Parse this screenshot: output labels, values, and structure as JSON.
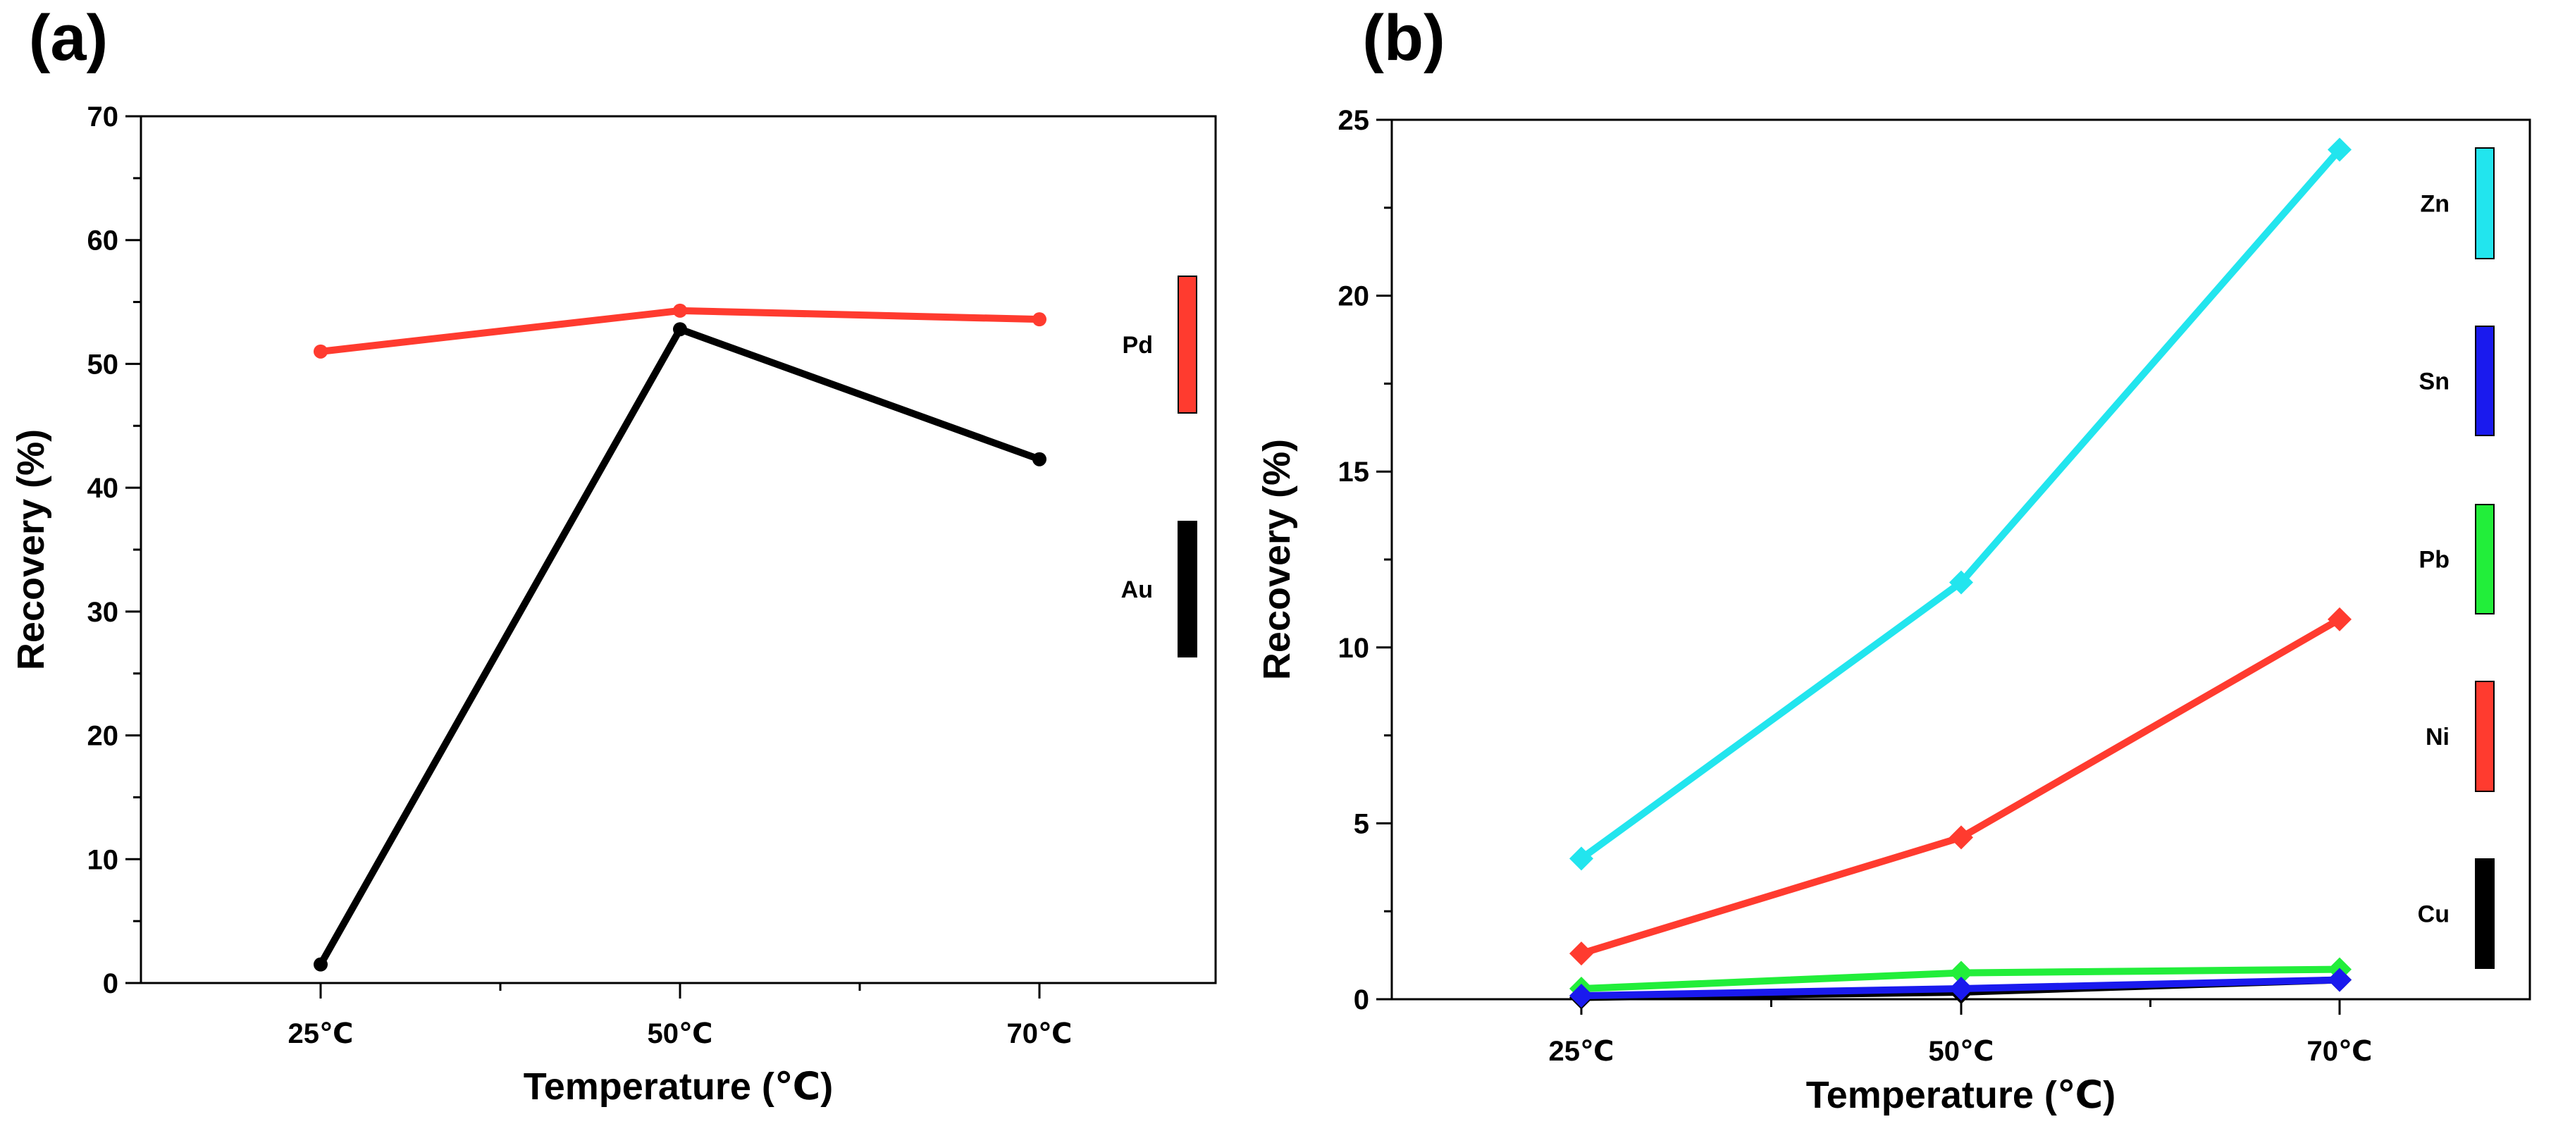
{
  "chart_data": [
    {
      "panel_label": "(a)",
      "type": "line",
      "categories": [
        "25℃",
        "50℃",
        "70℃"
      ],
      "xlabel": "Temperature (℃)",
      "ylabel": "Recovery (%)",
      "ylim": [
        0,
        70
      ],
      "yticks": [
        0,
        10,
        20,
        30,
        40,
        50,
        60,
        70
      ],
      "ytick_labels": [
        "0",
        "10",
        "20",
        "30",
        "40",
        "50",
        "60",
        "70"
      ],
      "marker": "circle",
      "legend_position": "right",
      "series": [
        {
          "name": "Pd",
          "color": "#ff3b2f",
          "values": [
            51.0,
            54.3,
            53.6
          ]
        },
        {
          "name": "Au",
          "color": "#000000",
          "values": [
            1.5,
            52.8,
            42.3
          ]
        }
      ]
    },
    {
      "panel_label": "(b)",
      "type": "line",
      "categories": [
        "25℃",
        "50℃",
        "70℃"
      ],
      "xlabel": "Temperature (℃)",
      "ylabel": "Recovery (%)",
      "ylim": [
        0,
        25
      ],
      "yticks": [
        0,
        5,
        10,
        15,
        20,
        25
      ],
      "ytick_labels": [
        "0",
        "5",
        "10",
        "15",
        "20",
        "25"
      ],
      "marker": "diamond",
      "legend_position": "right",
      "series": [
        {
          "name": "Zn",
          "color": "#22e5ee",
          "values": [
            4.0,
            11.85,
            24.15
          ]
        },
        {
          "name": "Sn",
          "color": "#1a1aee",
          "values": [
            0.1,
            0.3,
            0.55
          ]
        },
        {
          "name": "Pb",
          "color": "#22ee3a",
          "values": [
            0.3,
            0.75,
            0.85
          ]
        },
        {
          "name": "Ni",
          "color": "#ff3b2f",
          "values": [
            1.3,
            4.6,
            10.8
          ]
        },
        {
          "name": "Cu",
          "color": "#000000",
          "values": [
            0.05,
            0.2,
            0.55
          ]
        }
      ]
    }
  ]
}
